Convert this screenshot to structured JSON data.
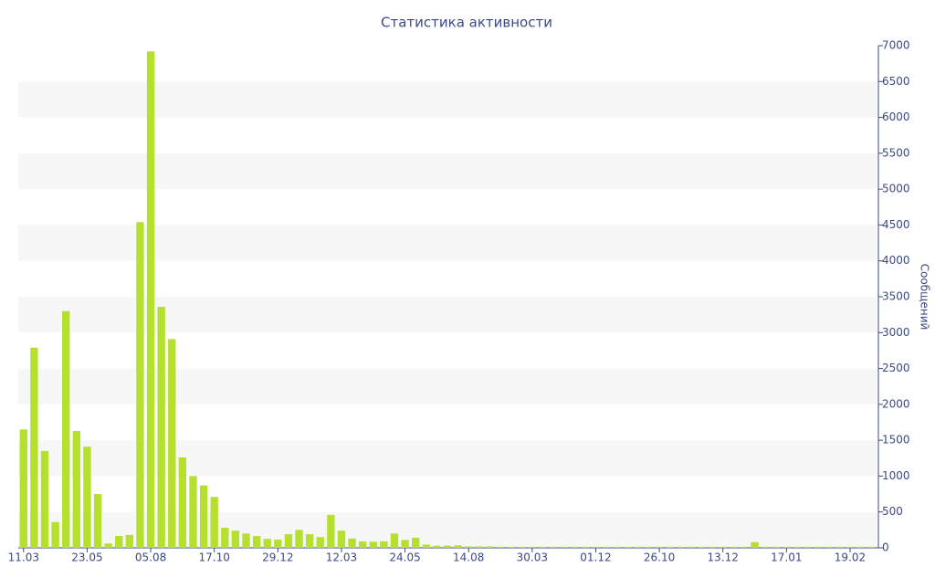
{
  "chart_data": {
    "type": "bar",
    "title": "Статистика активности",
    "y_label": "Сообщений",
    "categories": [
      "11.03",
      null,
      null,
      null,
      null,
      null,
      "23.05",
      null,
      null,
      null,
      null,
      null,
      "05.08",
      null,
      null,
      null,
      null,
      null,
      "17.10",
      null,
      null,
      null,
      null,
      null,
      "29.12",
      null,
      null,
      null,
      null,
      null,
      "12.03",
      null,
      null,
      null,
      null,
      null,
      "24.05",
      null,
      null,
      null,
      null,
      null,
      "14.08",
      null,
      null,
      null,
      null,
      null,
      "30.03",
      null,
      null,
      null,
      null,
      null,
      "01.12",
      null,
      null,
      null,
      null,
      null,
      "26.10",
      null,
      null,
      null,
      null,
      null,
      "13.12",
      null,
      null,
      null,
      null,
      null,
      "17.01",
      null,
      null,
      null,
      null,
      null,
      "19.02",
      null,
      null
    ],
    "values": [
      1650,
      2790,
      1350,
      360,
      3300,
      1630,
      1410,
      750,
      60,
      165,
      180,
      4540,
      6920,
      3360,
      2910,
      1260,
      1000,
      870,
      710,
      280,
      240,
      200,
      165,
      125,
      115,
      190,
      250,
      190,
      150,
      460,
      240,
      130,
      90,
      85,
      90,
      200,
      110,
      140,
      45,
      30,
      30,
      35,
      20,
      20,
      20,
      15,
      15,
      15,
      15,
      15,
      15,
      15,
      15,
      15,
      15,
      15,
      15,
      15,
      15,
      15,
      15,
      15,
      15,
      15,
      15,
      15,
      15,
      15,
      15,
      80,
      15,
      15,
      15,
      15,
      15,
      15,
      15,
      15,
      15,
      15,
      15
    ],
    "color": "#b5e02e",
    "ylim": [
      0,
      7000
    ],
    "yticks": [
      0,
      500,
      1000,
      1500,
      2000,
      2500,
      3000,
      3500,
      4000,
      4500,
      5000,
      5500,
      6000,
      6500,
      7000
    ],
    "grid": true,
    "y_axis_side": "right"
  }
}
